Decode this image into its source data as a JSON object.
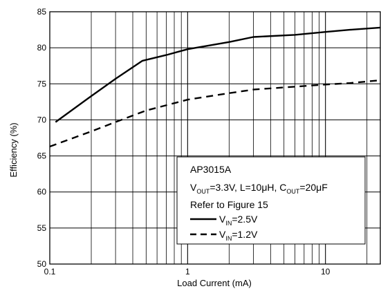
{
  "chart_data": {
    "type": "line",
    "title": "",
    "xlabel": "Load Current (mA)",
    "ylabel": "Efficiency (%)",
    "xscale": "log",
    "xlim": [
      0.1,
      25
    ],
    "ylim": [
      50,
      85
    ],
    "grid": true,
    "x_tick_labels": [
      "0.1",
      "1",
      "10"
    ],
    "y_tick_labels": [
      "50",
      "55",
      "60",
      "65",
      "70",
      "75",
      "80",
      "85"
    ],
    "legend_placement": "bottom-right",
    "legend": {
      "line1": "AP3015A",
      "line2": {
        "v": "V",
        "v_sub": "OUT",
        "mid": "=3.3V, L=10μH, C",
        "c_sub": "OUT",
        "end": "=20μF"
      },
      "line3": "Refer to Figure 15"
    },
    "series": [
      {
        "label_main": "V",
        "label_sub": "IN",
        "label_value": "=2.5V",
        "style": "solid",
        "x": [
          0.11,
          0.2,
          0.3,
          0.47,
          0.7,
          1.0,
          2.0,
          3.0,
          6.0,
          10.0,
          15.0,
          25.0
        ],
        "y": [
          69.7,
          73.3,
          75.7,
          78.2,
          79.0,
          79.8,
          80.8,
          81.5,
          81.8,
          82.2,
          82.5,
          82.8
        ]
      },
      {
        "label_main": "V",
        "label_sub": "IN",
        "label_value": "=1.2V",
        "style": "dashed",
        "x": [
          0.1,
          0.2,
          0.3,
          0.5,
          1.0,
          2.0,
          3.0,
          5.0,
          10.0,
          15.0,
          25.0
        ],
        "y": [
          66.3,
          68.4,
          69.7,
          71.3,
          72.8,
          73.7,
          74.2,
          74.5,
          74.9,
          75.1,
          75.5
        ]
      }
    ]
  }
}
